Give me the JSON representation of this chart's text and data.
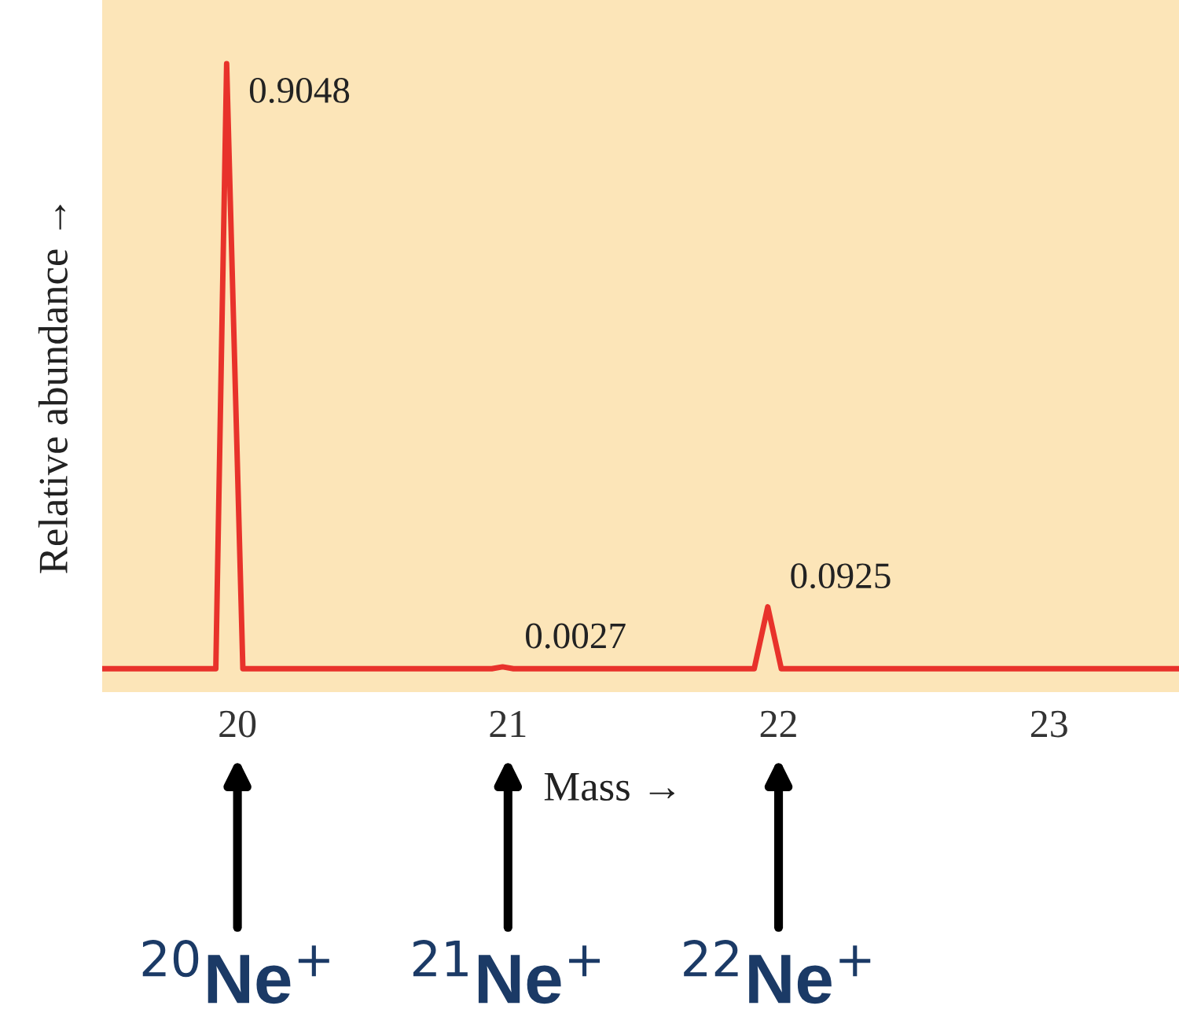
{
  "chart_data": {
    "type": "line",
    "xlabel": "Mass →",
    "ylabel": "Relative abundance →",
    "x": [
      19.5,
      19.92,
      19.96,
      20.02,
      20.94,
      20.98,
      21.02,
      21.91,
      21.96,
      22.01,
      23.48
    ],
    "series": [
      {
        "color": "#e8322b",
        "values": [
          0,
          0,
          0.9048,
          0,
          0,
          0.0027,
          0,
          0,
          0.0925,
          0,
          0
        ],
        "value_labels": [
          null,
          null,
          "0.9048",
          null,
          null,
          "0.0027",
          null,
          null,
          "0.0925",
          null,
          null
        ]
      }
    ],
    "xlim": [
      19.5,
      23.48
    ],
    "xticks": [
      20,
      21,
      22,
      23
    ],
    "ylim": [
      -0.035,
      1.0
    ],
    "tick_labels": "x",
    "annotations": [
      "$^{20}$Ne$^{+}$",
      "$^{21}$Ne$^{+}$",
      "$^{22}$Ne$^{+}$"
    ],
    "grid": false,
    "legend": false,
    "marker": "none",
    "line_style": "solid"
  }
}
